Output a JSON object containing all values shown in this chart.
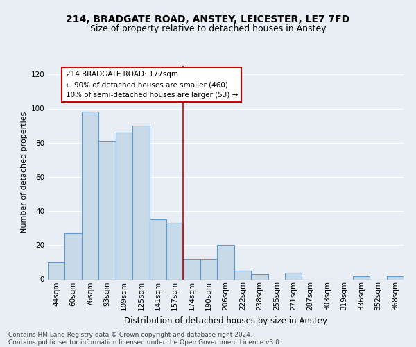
{
  "title1": "214, BRADGATE ROAD, ANSTEY, LEICESTER, LE7 7FD",
  "title2": "Size of property relative to detached houses in Anstey",
  "xlabel": "Distribution of detached houses by size in Anstey",
  "ylabel": "Number of detached properties",
  "bins": [
    "44sqm",
    "60sqm",
    "76sqm",
    "93sqm",
    "109sqm",
    "125sqm",
    "141sqm",
    "157sqm",
    "174sqm",
    "190sqm",
    "206sqm",
    "222sqm",
    "238sqm",
    "255sqm",
    "271sqm",
    "287sqm",
    "303sqm",
    "319sqm",
    "336sqm",
    "352sqm",
    "368sqm"
  ],
  "values": [
    10,
    27,
    98,
    81,
    86,
    90,
    35,
    33,
    12,
    12,
    20,
    5,
    3,
    0,
    4,
    0,
    0,
    0,
    2,
    0,
    2
  ],
  "bar_color": "#c8d9e8",
  "bar_edge_color": "#5b9bd5",
  "property_line_color": "#cc0000",
  "annotation_line1": "214 BRADGATE ROAD: 177sqm",
  "annotation_line2": "← 90% of detached houses are smaller (460)",
  "annotation_line3": "10% of semi-detached houses are larger (53) →",
  "annotation_box_color": "#ffffff",
  "annotation_box_edge": "#cc0000",
  "ylim": [
    0,
    125
  ],
  "yticks": [
    0,
    20,
    40,
    60,
    80,
    100,
    120
  ],
  "footer_text": "Contains HM Land Registry data © Crown copyright and database right 2024.\nContains public sector information licensed under the Open Government Licence v3.0.",
  "bg_color": "#e8eef4",
  "plot_bg_color": "#e8eef4",
  "title1_fontsize": 10,
  "title2_fontsize": 9,
  "xlabel_fontsize": 8.5,
  "ylabel_fontsize": 8,
  "tick_fontsize": 7.5,
  "footer_fontsize": 6.5
}
